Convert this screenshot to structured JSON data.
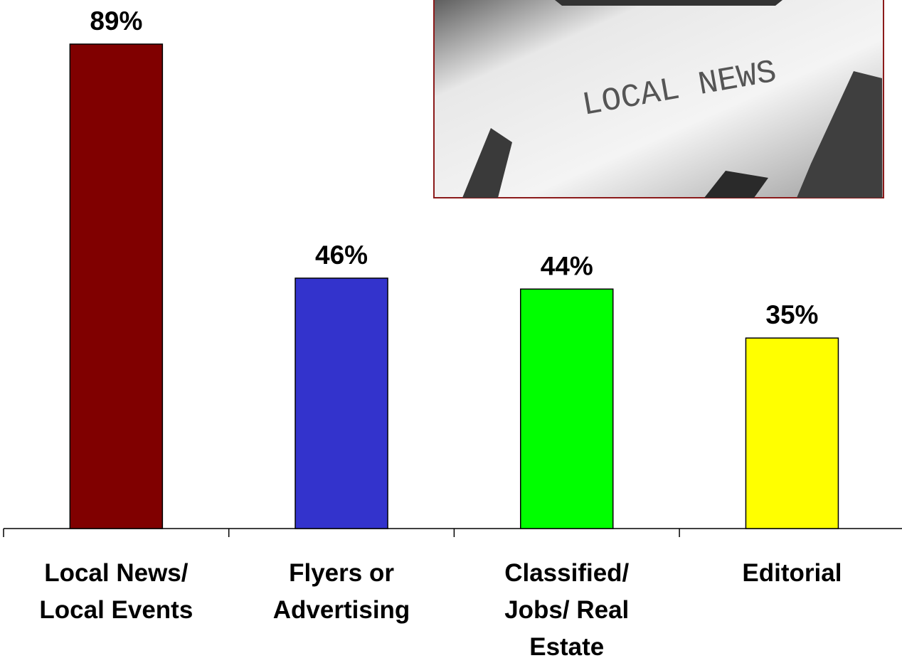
{
  "chart_data": {
    "type": "bar",
    "categories": [
      "Local News/ Local Events",
      "Flyers or Advertising",
      "Classified/ Jobs/ Real Estate",
      "Editorial"
    ],
    "values": [
      89,
      46,
      44,
      35
    ],
    "value_labels": [
      "89%",
      "46%",
      "44%",
      "35%"
    ],
    "colors": [
      "#800000",
      "#3333cc",
      "#00ff00",
      "#ffff00"
    ],
    "photo_text": "LOCAL NEWS"
  }
}
